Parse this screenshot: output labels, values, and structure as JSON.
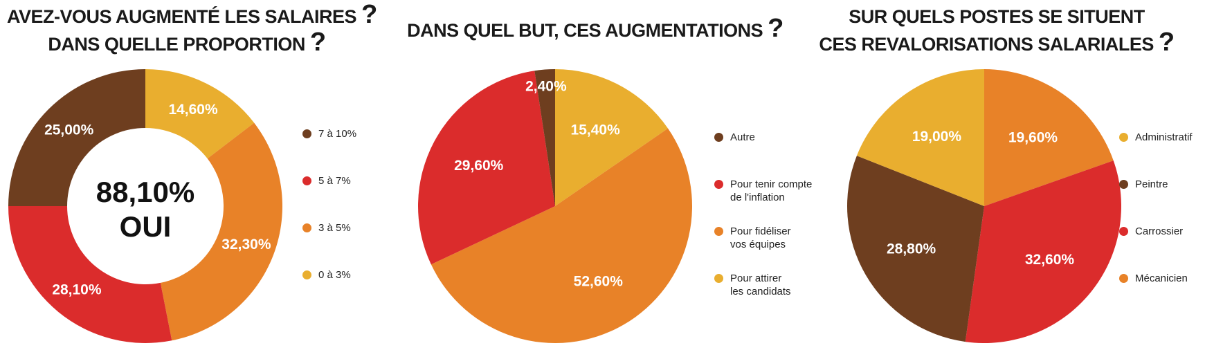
{
  "chart_data": [
    {
      "type": "donut",
      "title_lines": [
        "AVEZ-VOUS AUGMENTÉ LES SALAIRES",
        "DANS QUELLE PROPORTION"
      ],
      "title_mark": "?",
      "center_value": "88,10%",
      "center_label": "OUI",
      "categories": [
        "0 à 3%",
        "3 à 5%",
        "5 à 7%",
        "7 à 10%"
      ],
      "values": [
        14.6,
        32.3,
        28.1,
        25.0
      ],
      "labels": [
        "14,60%",
        "32,30%",
        "28,10%",
        "25,00%"
      ],
      "colors": [
        "#E9AE2F",
        "#E88228",
        "#DB2C2C",
        "#6E3E1F"
      ],
      "legend_order": [
        3,
        2,
        1,
        0
      ]
    },
    {
      "type": "pie",
      "title_lines": [
        "DANS QUEL BUT, CES AUGMENTATIONS"
      ],
      "title_mark": "?",
      "categories": [
        "Pour attirer\nles candidats",
        "Pour fidéliser\nvos équipes",
        "Pour tenir compte\nde l'inflation",
        "Autre"
      ],
      "values": [
        15.4,
        52.6,
        29.6,
        2.4
      ],
      "labels": [
        "15,40%",
        "52,60%",
        "29,60%",
        "2,40%"
      ],
      "colors": [
        "#E9AE2F",
        "#E88228",
        "#DB2C2C",
        "#6E3E1F"
      ],
      "legend_order": [
        3,
        2,
        1,
        0
      ]
    },
    {
      "type": "pie",
      "title_lines": [
        "SUR QUELS POSTES SE SITUENT",
        "CES REVALORISATIONS SALARIALES"
      ],
      "title_mark": "?",
      "categories": [
        "Mécanicien",
        "Carrossier",
        "Peintre",
        "Administratif"
      ],
      "values": [
        19.6,
        32.6,
        28.8,
        19.0
      ],
      "labels": [
        "19,60%",
        "32,60%",
        "28,80%",
        "19,00%"
      ],
      "colors": [
        "#E88228",
        "#DB2C2C",
        "#6E3E1F",
        "#E9AE2F"
      ],
      "legend_order": [
        3,
        2,
        1,
        0
      ]
    }
  ]
}
